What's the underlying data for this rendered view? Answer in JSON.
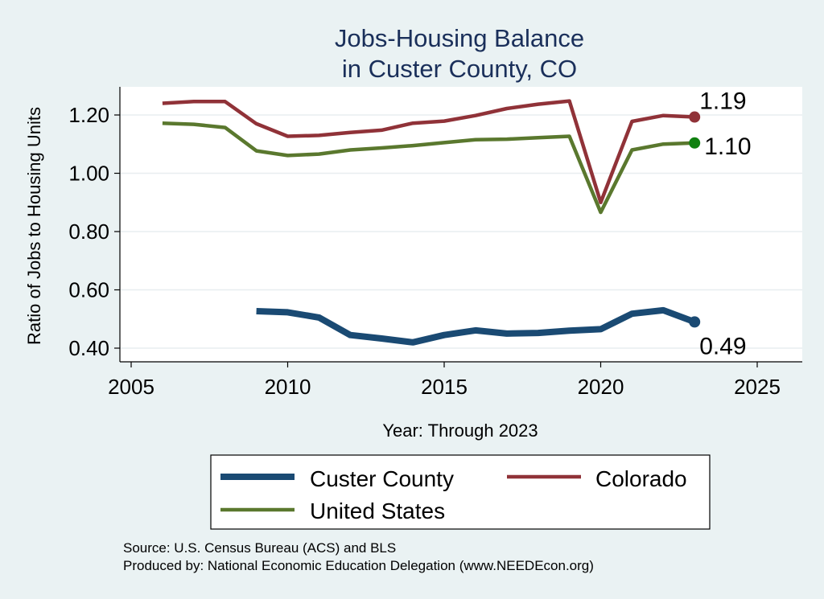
{
  "chart_data": {
    "type": "line",
    "title": [
      "Jobs-Housing Balance",
      "in Custer County, CO"
    ],
    "xlabel": "Year: Through 2023",
    "ylabel": "Ratio of Jobs to Housing Units",
    "xlim": [
      2005,
      2025
    ],
    "ylim": [
      0.4,
      1.2
    ],
    "x_ticks": [
      2005,
      2010,
      2015,
      2020,
      2025
    ],
    "y_ticks": [
      0.4,
      0.6,
      0.8,
      1.0,
      1.2
    ],
    "y_tick_labels": [
      "0.40",
      "0.60",
      "0.80",
      "1.00",
      "1.20"
    ],
    "grid": "horizontal",
    "legend_position": "bottom",
    "series": [
      {
        "name": "Custer County",
        "color": "#1a4a73",
        "x": [
          2009,
          2010,
          2011,
          2012,
          2013,
          2014,
          2015,
          2016,
          2017,
          2018,
          2019,
          2020,
          2021,
          2022,
          2023
        ],
        "values": [
          0.527,
          0.523,
          0.505,
          0.445,
          0.433,
          0.42,
          0.445,
          0.461,
          0.45,
          0.452,
          0.46,
          0.465,
          0.518,
          0.53,
          0.49
        ],
        "end_label": "0.49"
      },
      {
        "name": "Colorado",
        "color": "#903238",
        "x": [
          2006,
          2007,
          2008,
          2009,
          2010,
          2011,
          2012,
          2013,
          2014,
          2015,
          2016,
          2017,
          2018,
          2019,
          2020,
          2021,
          2022,
          2023
        ],
        "values": [
          1.24,
          1.246,
          1.246,
          1.17,
          1.127,
          1.13,
          1.14,
          1.148,
          1.172,
          1.179,
          1.198,
          1.222,
          1.237,
          1.248,
          0.9,
          1.178,
          1.198,
          1.193
        ],
        "end_label": "1.19"
      },
      {
        "name": "United States",
        "color": "#5a782e",
        "x": [
          2006,
          2007,
          2008,
          2009,
          2010,
          2011,
          2012,
          2013,
          2014,
          2015,
          2016,
          2017,
          2018,
          2019,
          2020,
          2021,
          2022,
          2023
        ],
        "values": [
          1.172,
          1.168,
          1.157,
          1.077,
          1.061,
          1.066,
          1.08,
          1.087,
          1.095,
          1.105,
          1.115,
          1.117,
          1.122,
          1.127,
          0.866,
          1.08,
          1.1,
          1.104
        ],
        "end_label": "1.10",
        "end_marker_color": "#108010"
      }
    ],
    "legend": [
      "Custer County",
      "Colorado",
      "United States"
    ],
    "notes": [
      "Source: U.S. Census Bureau (ACS) and BLS",
      "Produced by: National Economic Education Delegation (www.NEEDEcon.org)"
    ]
  }
}
